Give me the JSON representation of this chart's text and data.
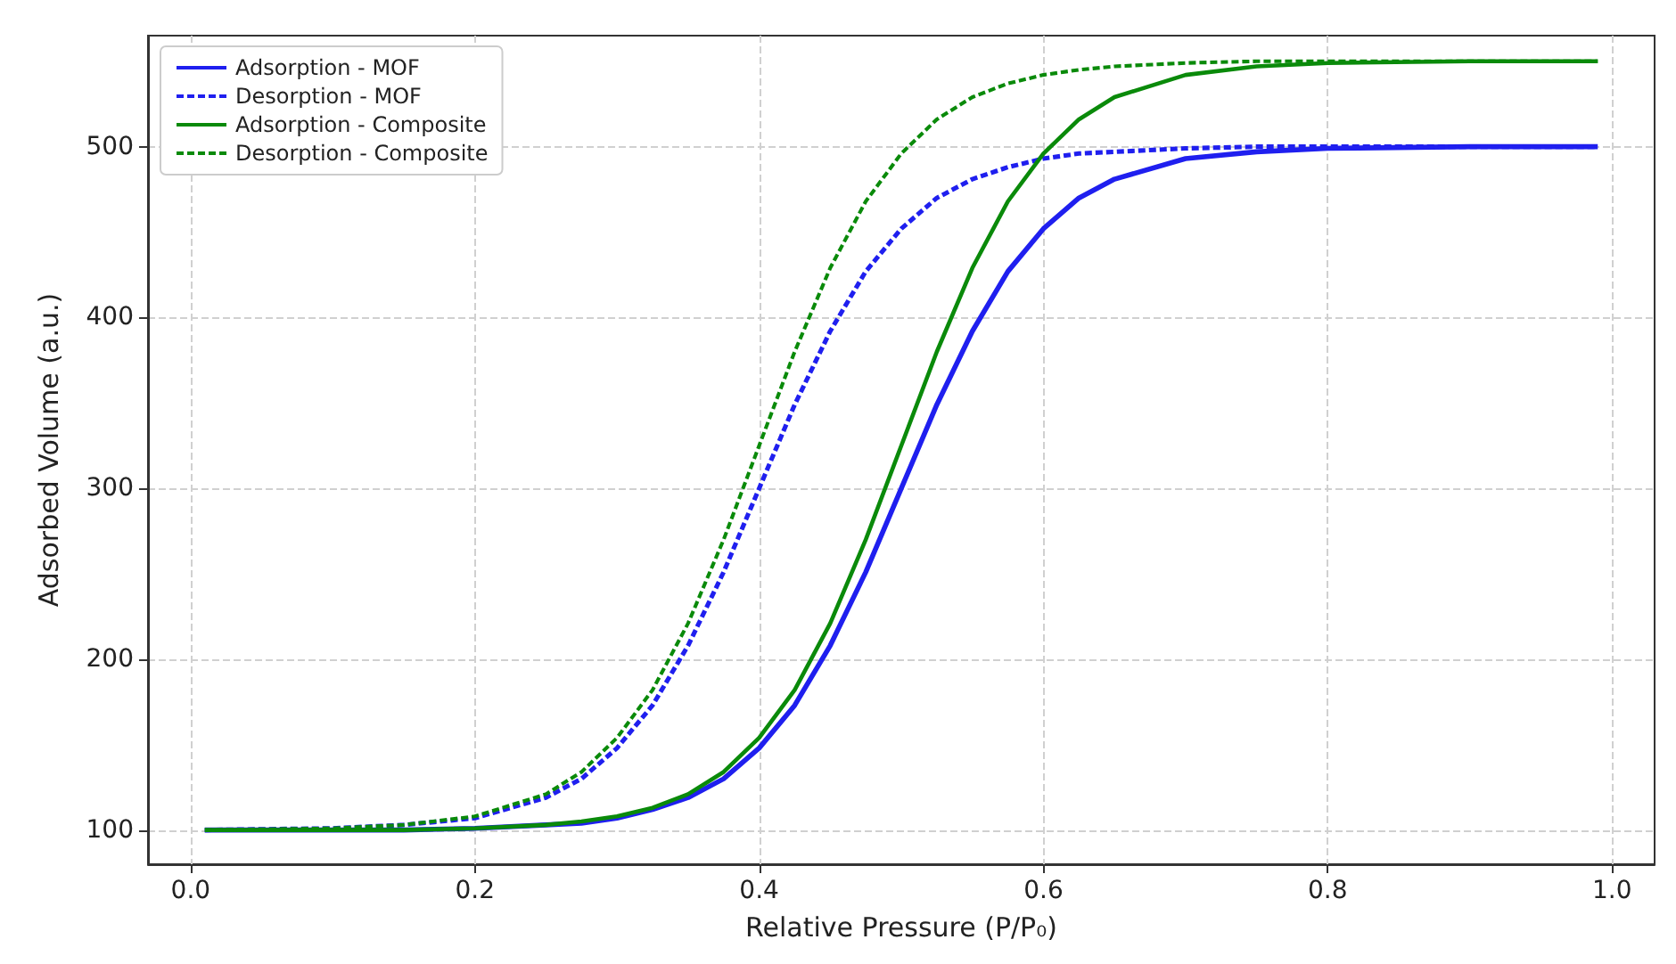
{
  "chart_data": {
    "type": "line",
    "xlabel": "Relative Pressure (P/P₀)",
    "ylabel": "Adsorbed Volume (a.u.)",
    "x": [
      0.01,
      0.1,
      0.15,
      0.2,
      0.25,
      0.275,
      0.3,
      0.325,
      0.35,
      0.375,
      0.4,
      0.425,
      0.45,
      0.475,
      0.5,
      0.525,
      0.55,
      0.575,
      0.6,
      0.625,
      0.65,
      0.7,
      0.75,
      0.8,
      0.9,
      0.99
    ],
    "series": [
      {
        "name": "Adsorption - MOF",
        "color": "#1f1fef",
        "line_style": "solid",
        "values": [
          100,
          100,
          100,
          101,
          103,
          104,
          107,
          112,
          119,
          130,
          148,
          173,
          208,
          251,
          300,
          349,
          392,
          427,
          452,
          470,
          481,
          493,
          497,
          499,
          500,
          500
        ]
      },
      {
        "name": "Desorption - MOF",
        "color": "#1f1fef",
        "line_style": "dashed",
        "values": [
          100,
          101,
          103,
          107,
          119,
          130,
          148,
          173,
          208,
          251,
          300,
          349,
          392,
          427,
          452,
          470,
          481,
          488,
          493,
          496,
          497,
          499,
          500,
          500,
          500,
          500
        ]
      },
      {
        "name": "Adsorption - Composite",
        "color": "#0a8a0a",
        "line_style": "solid",
        "values": [
          100,
          100,
          100,
          101,
          103,
          105,
          108,
          113,
          121,
          134,
          154,
          182,
          221,
          270,
          325,
          380,
          429,
          468,
          496,
          516,
          529,
          542,
          547,
          549,
          550,
          550
        ]
      },
      {
        "name": "Desorption - Composite",
        "color": "#0a8a0a",
        "line_style": "dashed",
        "values": [
          100,
          101,
          103,
          108,
          121,
          134,
          154,
          182,
          221,
          270,
          325,
          380,
          429,
          468,
          496,
          516,
          529,
          537,
          542,
          545,
          547,
          549,
          550,
          550,
          550,
          550
        ]
      }
    ],
    "xlim": [
      -0.03,
      1.03
    ],
    "xticks": [
      {
        "value": 0,
        "label": "0.0"
      },
      0.2,
      0.4,
      0.6,
      0.8,
      {
        "value": 1,
        "label": "1.0"
      }
    ],
    "ylim": [
      80,
      565
    ],
    "yticks": [
      100,
      200,
      300,
      400,
      500
    ],
    "grid": true,
    "legend": "top left",
    "marker": "none"
  }
}
